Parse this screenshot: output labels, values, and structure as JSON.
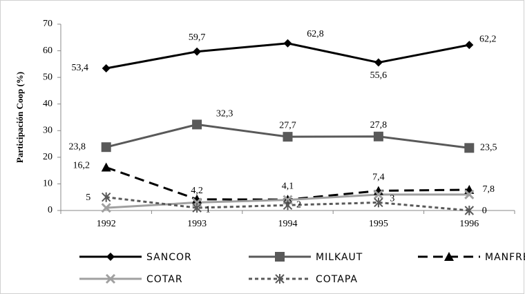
{
  "chart_data": {
    "type": "line",
    "y_label": "Participación Coop (%)",
    "categories": [
      "1992",
      "1993",
      "1994",
      "1995",
      "1996"
    ],
    "ylim": [
      0,
      70
    ],
    "yticks": [
      0,
      10,
      20,
      30,
      40,
      50,
      60,
      70
    ],
    "grid": false,
    "legend": "bottom",
    "series": [
      {
        "name": "SANCOR",
        "color": "#000000",
        "marker": "diamond",
        "dash": "solid",
        "values": [
          53.4,
          59.7,
          62.8,
          55.6,
          62.2
        ],
        "value_labels": [
          "53,4",
          "59,7",
          "62,8",
          "55,6",
          "62,2"
        ]
      },
      {
        "name": "MILKAUT",
        "color": "#595959",
        "marker": "square",
        "dash": "solid",
        "values": [
          23.8,
          32.3,
          27.7,
          27.8,
          23.5
        ],
        "value_labels": [
          "23,8",
          "32,3",
          "27,7",
          "27,8",
          "23,5"
        ]
      },
      {
        "name": "MANFREY",
        "color": "#000000",
        "marker": "triangle",
        "dash": "long",
        "values": [
          16.2,
          4.2,
          4.1,
          7.4,
          7.8
        ],
        "value_labels": [
          "16,2",
          "4,2",
          "4,1",
          "7,4",
          "7,8"
        ]
      },
      {
        "name": "COTAR",
        "color": "#a0a0a0",
        "marker": "x",
        "dash": "solid",
        "values": [
          1,
          3,
          4,
          6,
          6
        ]
      },
      {
        "name": "COTAPA",
        "color": "#595959",
        "marker": "star",
        "dash": "short",
        "values": [
          5,
          1,
          2,
          3,
          0
        ]
      }
    ]
  }
}
